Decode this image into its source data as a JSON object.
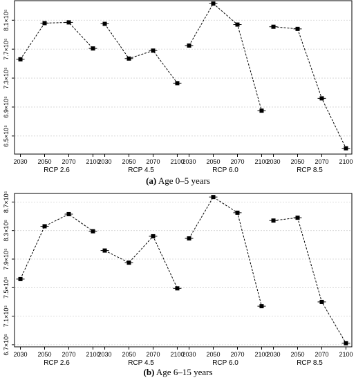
{
  "chart_data": [
    {
      "type": "line",
      "caption_label": "(a)",
      "caption_text": "Age 0–5 years",
      "groups": [
        {
          "name": "RCP 2.6",
          "x": [
            "2030",
            "2050",
            "2070",
            "2100"
          ],
          "values": [
            756000,
            806000,
            807000,
            771000
          ]
        },
        {
          "name": "RCP 4.5",
          "x": [
            "2030",
            "2050",
            "2070",
            "2100"
          ],
          "values": [
            805000,
            757000,
            768000,
            723000
          ]
        },
        {
          "name": "RCP 6.0",
          "x": [
            "2030",
            "2050",
            "2070",
            "2100"
          ],
          "values": [
            775000,
            833000,
            804000,
            685000
          ]
        },
        {
          "name": "RCP 8.5",
          "x": [
            "2030",
            "2050",
            "2070",
            "2100"
          ],
          "values": [
            801000,
            798000,
            702000,
            633000
          ]
        }
      ],
      "ylim": [
        625000,
        837000
      ],
      "yticks": [
        {
          "value": 650000,
          "label": "6.5×10⁵"
        },
        {
          "value": 690000,
          "label": "6.9×10⁵"
        },
        {
          "value": 730000,
          "label": "7.3×10⁵"
        },
        {
          "value": 770000,
          "label": "7.7×10⁵"
        },
        {
          "value": 810000,
          "label": "8.1×10⁵"
        }
      ],
      "grid": true,
      "xlabel": "",
      "ylabel": ""
    },
    {
      "type": "line",
      "caption_label": "(b)",
      "caption_text": "Age 6–15 years",
      "groups": [
        {
          "name": "RCP 2.6",
          "x": [
            "2030",
            "2050",
            "2070",
            "2100"
          ],
          "values": [
            762000,
            836000,
            853000,
            829000
          ]
        },
        {
          "name": "RCP 4.5",
          "x": [
            "2030",
            "2050",
            "2070",
            "2100"
          ],
          "values": [
            802000,
            785000,
            822000,
            749000
          ]
        },
        {
          "name": "RCP 6.0",
          "x": [
            "2030",
            "2050",
            "2070",
            "2100"
          ],
          "values": [
            819000,
            877000,
            855000,
            724000
          ]
        },
        {
          "name": "RCP 8.5",
          "x": [
            "2030",
            "2050",
            "2070",
            "2100"
          ],
          "values": [
            844000,
            848000,
            730000,
            672000
          ]
        }
      ],
      "ylim": [
        667000,
        882000
      ],
      "yticks": [
        {
          "value": 670000,
          "label": "6.7×10⁵"
        },
        {
          "value": 710000,
          "label": "7.1×10⁵"
        },
        {
          "value": 750000,
          "label": "7.5×10⁵"
        },
        {
          "value": 790000,
          "label": "7.9×10⁵"
        },
        {
          "value": 830000,
          "label": "8.3×10⁵"
        },
        {
          "value": 870000,
          "label": "8.7×10⁵"
        }
      ],
      "grid": true,
      "xlabel": "",
      "ylabel": ""
    }
  ]
}
